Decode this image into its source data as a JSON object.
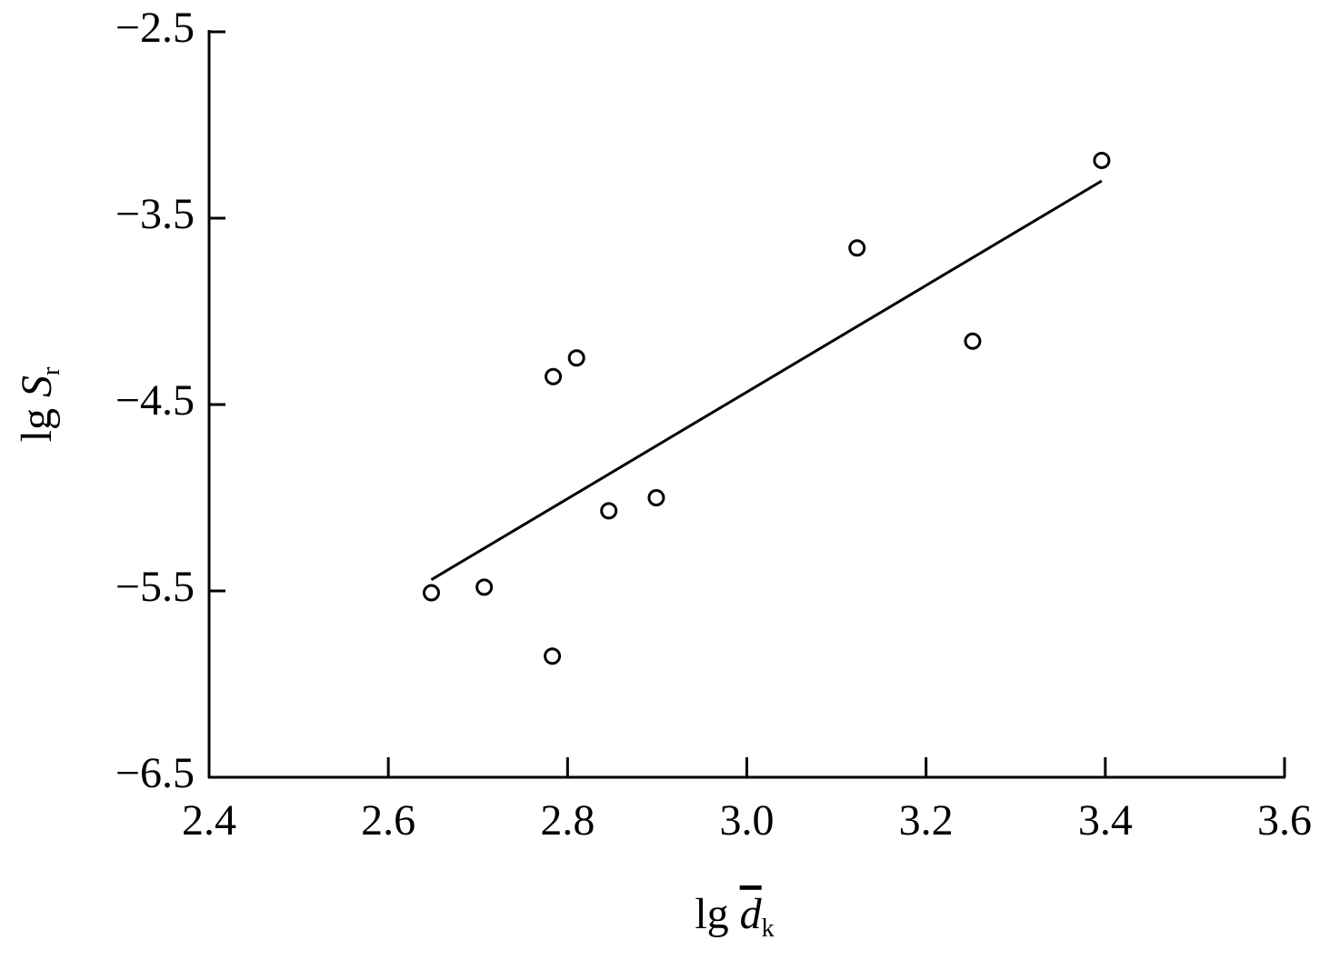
{
  "chart_data": {
    "type": "scatter",
    "xlabel": {
      "prefix": "lg",
      "symbol": "d",
      "subscript": "k"
    },
    "ylabel": {
      "prefix": "lg",
      "symbol": "S",
      "subscript": "r"
    },
    "xlim": [
      2.4,
      3.6
    ],
    "xticks": [
      2.4,
      2.6,
      2.8,
      {
        "value": 3,
        "label": "3.0"
      },
      3.2,
      3.4,
      3.6
    ],
    "ylim": [
      -6.5,
      -2.5
    ],
    "yticks": [
      {
        "value": -6.5,
        "label": "−6.5"
      },
      {
        "value": -5.5,
        "label": "−5.5"
      },
      {
        "value": -4.5,
        "label": "−4.5"
      },
      {
        "value": -3.5,
        "label": "−3.5"
      },
      {
        "value": -2.5,
        "label": "−2.5"
      }
    ],
    "series": [
      {
        "type": "scatter",
        "marker": "open-circle",
        "color": "#000000",
        "x": [
          2.648,
          2.707,
          2.783,
          2.784,
          2.81,
          2.846,
          2.899,
          3.123,
          3.252,
          3.396
        ],
        "values": [
          -5.51,
          -5.48,
          -5.85,
          -4.35,
          -4.25,
          -5.07,
          -5.0,
          -3.66,
          -4.16,
          -3.19
        ]
      },
      {
        "type": "line",
        "color": "#000000",
        "x": [
          2.648,
          3.396
        ],
        "values": [
          -5.44,
          -3.3
        ]
      }
    ]
  }
}
